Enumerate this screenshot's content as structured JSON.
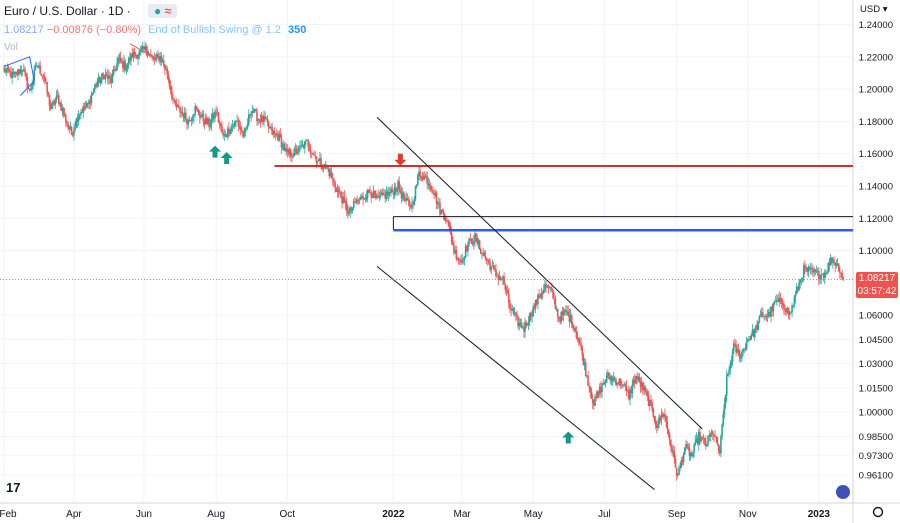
{
  "header": {
    "title": "Euro / U.S. Dollar · 1D ·",
    "open_value": "1.08217",
    "change": "−0.00876 (−0.80%)",
    "indicator_name": "End of Bullish Swing @ 1.2",
    "indicator_value": "350",
    "volume_label": "Vol",
    "badge_dot": "●",
    "badge_wave": "≈"
  },
  "chart_data": {
    "type": "candlestick",
    "currency": "USD",
    "y_range": [
      0.953,
      1.244
    ],
    "y_ticks": [
      "1.24000",
      "1.22000",
      "1.20000",
      "1.18000",
      "1.16000",
      "1.14000",
      "1.12000",
      "1.10000",
      "1.08217",
      "1.06000",
      "1.04500",
      "1.03000",
      "1.01500",
      "1.00000",
      "0.98500",
      "0.97300",
      "0.96100"
    ],
    "x_ticks": [
      {
        "label": "Feb",
        "x": 0
      },
      {
        "label": "Apr",
        "x": 60
      },
      {
        "label": "Jun",
        "x": 120
      },
      {
        "label": "Aug",
        "x": 182
      },
      {
        "label": "Oct",
        "x": 243
      },
      {
        "label": "2022",
        "x": 334,
        "bold": true
      },
      {
        "label": "Mar",
        "x": 393
      },
      {
        "label": "May",
        "x": 454
      },
      {
        "label": "Jul",
        "x": 515
      },
      {
        "label": "Sep",
        "x": 577
      },
      {
        "label": "Nov",
        "x": 638
      },
      {
        "label": "2023",
        "x": 699,
        "bold": true
      }
    ],
    "x_range": [
      0,
      724
    ],
    "anchors": [
      [
        0,
        1.212
      ],
      [
        8,
        1.208
      ],
      [
        16,
        1.213
      ],
      [
        22,
        1.198
      ],
      [
        28,
        1.215
      ],
      [
        34,
        1.208
      ],
      [
        40,
        1.188
      ],
      [
        46,
        1.195
      ],
      [
        52,
        1.183
      ],
      [
        58,
        1.172
      ],
      [
        64,
        1.185
      ],
      [
        72,
        1.19
      ],
      [
        78,
        1.202
      ],
      [
        86,
        1.209
      ],
      [
        92,
        1.205
      ],
      [
        98,
        1.218
      ],
      [
        104,
        1.214
      ],
      [
        110,
        1.221
      ],
      [
        116,
        1.222
      ],
      [
        122,
        1.225
      ],
      [
        128,
        1.218
      ],
      [
        134,
        1.22
      ],
      [
        140,
        1.21
      ],
      [
        146,
        1.19
      ],
      [
        152,
        1.186
      ],
      [
        158,
        1.18
      ],
      [
        164,
        1.188
      ],
      [
        170,
        1.182
      ],
      [
        176,
        1.178
      ],
      [
        182,
        1.186
      ],
      [
        188,
        1.17
      ],
      [
        194,
        1.176
      ],
      [
        200,
        1.18
      ],
      [
        206,
        1.17
      ],
      [
        212,
        1.188
      ],
      [
        218,
        1.182
      ],
      [
        224,
        1.18
      ],
      [
        230,
        1.173
      ],
      [
        236,
        1.17
      ],
      [
        242,
        1.16
      ],
      [
        248,
        1.16
      ],
      [
        254,
        1.163
      ],
      [
        260,
        1.167
      ],
      [
        266,
        1.159
      ],
      [
        272,
        1.154
      ],
      [
        278,
        1.15
      ],
      [
        284,
        1.14
      ],
      [
        290,
        1.132
      ],
      [
        296,
        1.123
      ],
      [
        302,
        1.13
      ],
      [
        308,
        1.133
      ],
      [
        314,
        1.137
      ],
      [
        320,
        1.131
      ],
      [
        326,
        1.134
      ],
      [
        332,
        1.136
      ],
      [
        338,
        1.14
      ],
      [
        344,
        1.13
      ],
      [
        350,
        1.128
      ],
      [
        356,
        1.148
      ],
      [
        362,
        1.145
      ],
      [
        368,
        1.138
      ],
      [
        374,
        1.125
      ],
      [
        380,
        1.12
      ],
      [
        386,
        1.1
      ],
      [
        392,
        1.093
      ],
      [
        398,
        1.104
      ],
      [
        404,
        1.108
      ],
      [
        410,
        1.099
      ],
      [
        416,
        1.092
      ],
      [
        422,
        1.085
      ],
      [
        428,
        1.082
      ],
      [
        434,
        1.065
      ],
      [
        440,
        1.056
      ],
      [
        446,
        1.052
      ],
      [
        452,
        1.061
      ],
      [
        458,
        1.07
      ],
      [
        464,
        1.078
      ],
      [
        470,
        1.074
      ],
      [
        476,
        1.058
      ],
      [
        482,
        1.062
      ],
      [
        488,
        1.055
      ],
      [
        494,
        1.042
      ],
      [
        500,
        1.022
      ],
      [
        506,
        1.005
      ],
      [
        512,
        1.015
      ],
      [
        518,
        1.022
      ],
      [
        524,
        1.02
      ],
      [
        530,
        1.018
      ],
      [
        536,
        1.01
      ],
      [
        542,
        1.022
      ],
      [
        548,
        1.015
      ],
      [
        554,
        1.005
      ],
      [
        560,
        0.992
      ],
      [
        566,
        1.0
      ],
      [
        572,
        0.98
      ],
      [
        578,
        0.96
      ],
      [
        584,
        0.978
      ],
      [
        590,
        0.973
      ],
      [
        596,
        0.985
      ],
      [
        602,
        0.98
      ],
      [
        608,
        0.988
      ],
      [
        614,
        0.975
      ],
      [
        620,
        1.02
      ],
      [
        626,
        1.04
      ],
      [
        632,
        1.035
      ],
      [
        638,
        1.045
      ],
      [
        644,
        1.05
      ],
      [
        650,
        1.06
      ],
      [
        656,
        1.06
      ],
      [
        662,
        1.068
      ],
      [
        668,
        1.068
      ],
      [
        674,
        1.06
      ],
      [
        680,
        1.075
      ],
      [
        686,
        1.088
      ],
      [
        692,
        1.087
      ],
      [
        698,
        1.085
      ],
      [
        704,
        1.086
      ],
      [
        710,
        1.095
      ],
      [
        716,
        1.09
      ],
      [
        720,
        1.082
      ]
    ],
    "price_line": 1.08217,
    "countdown": "03:57:42",
    "levels": [
      {
        "name": "resistance-red",
        "price": 1.1524,
        "x_start": 232,
        "color": "#d32f2f"
      },
      {
        "name": "zone-black-top",
        "price": 1.121,
        "x_start": 334,
        "color": "#131722"
      },
      {
        "name": "zone-black-bottom",
        "price": 1.113,
        "x_start": 334,
        "color": "#131722"
      },
      {
        "name": "level-blue",
        "price": 1.1124,
        "x_start": 334,
        "color": "#2962ff"
      }
    ],
    "channel": [
      {
        "from": [
          320,
          1.1825
        ],
        "to": [
          599,
          0.9895
        ]
      },
      {
        "from": [
          320,
          1.0902
        ],
        "to": [
          558,
          0.952
        ]
      }
    ],
    "up_arrows": [
      {
        "x": 181,
        "price": 1.165
      },
      {
        "x": 191,
        "price": 1.161
      },
      {
        "x": 484,
        "price": 0.988
      }
    ],
    "down_arrows": [
      {
        "x": 340,
        "price": 1.1525
      }
    ]
  },
  "colors": {
    "up": "#26a69a",
    "down": "#ef5350",
    "arrow": "#139a86",
    "grid": "#f0f3fa",
    "axis_text": "#131722"
  }
}
